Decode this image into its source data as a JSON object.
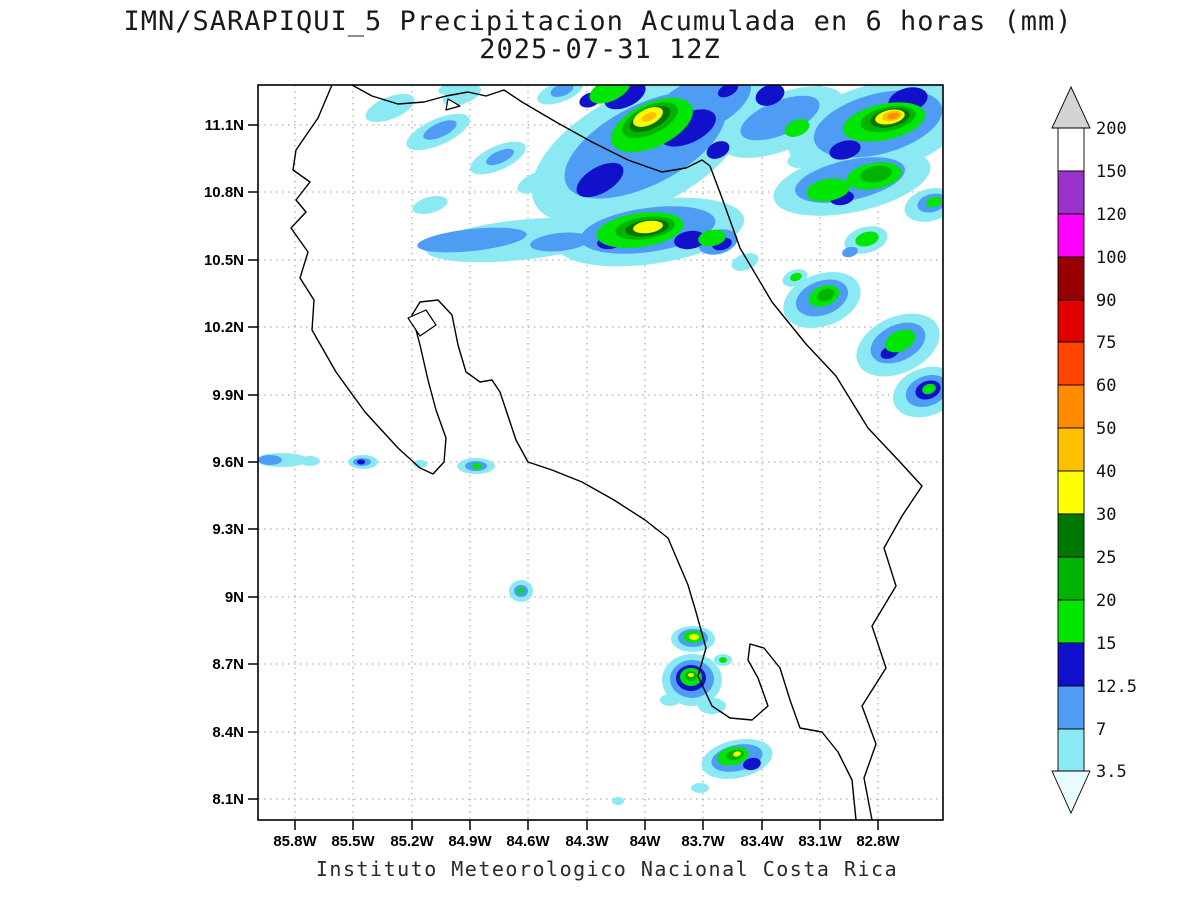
{
  "title": {
    "line1": "IMN/SARAPIQUI_5 Precipitacion Acumulada en 6 horas (mm)",
    "line2": "2025-07-31 12Z"
  },
  "footer": "Instituto Meteorologico Nacional Costa Rica",
  "axes": {
    "lat": [
      "11.1N",
      "10.8N",
      "10.5N",
      "10.2N",
      "9.9N",
      "9.6N",
      "9.3N",
      "9N",
      "8.7N",
      "8.4N",
      "8.1N"
    ],
    "lon": [
      "85.8W",
      "85.5W",
      "85.2W",
      "84.9W",
      "84.6W",
      "84.3W",
      "84W",
      "83.7W",
      "83.4W",
      "83.1W",
      "82.8W"
    ]
  },
  "colorbar": {
    "labels": [
      "200",
      "150",
      "120",
      "100",
      "90",
      "75",
      "60",
      "50",
      "40",
      "30",
      "25",
      "20",
      "15",
      "12.5",
      "7",
      "3.5"
    ],
    "colors": [
      "#d4d4d4",
      "#ffffff",
      "#9933cc",
      "#ff00ff",
      "#990000",
      "#e00000",
      "#ff4500",
      "#ff8c00",
      "#ffc000",
      "#ffff00",
      "#007700",
      "#00b300",
      "#00e600",
      "#1111cc",
      "#4f9cf5",
      "#8be9f4",
      "#e8fcff"
    ]
  },
  "chart_data": {
    "type": "heatmap",
    "title": "IMN/SARAPIQUI_5 Precipitacion Acumulada en 6 horas (mm)",
    "model": "IMN/SARAPIQUI_5",
    "valid_time": "2025-07-31 12Z",
    "variable": "Precipitacion Acumulada en 6 horas",
    "units": "mm",
    "lon_ticks": [
      "85.8W",
      "85.5W",
      "85.2W",
      "84.9W",
      "84.6W",
      "84.3W",
      "84W",
      "83.7W",
      "83.4W",
      "83.1W",
      "82.8W"
    ],
    "lat_ticks": [
      "11.1N",
      "10.8N",
      "10.5N",
      "10.2N",
      "9.9N",
      "9.6N",
      "9.3N",
      "9N",
      "8.7N",
      "8.4N",
      "8.1N"
    ],
    "levels_mm": [
      3.5,
      7,
      12.5,
      15,
      20,
      25,
      30,
      40,
      50,
      60,
      75,
      90,
      100,
      120,
      150,
      200
    ],
    "band_colors_ascending": [
      "#8be9f4",
      "#4f9cf5",
      "#1111cc",
      "#00e600",
      "#00b300",
      "#007700",
      "#ffff00",
      "#ffc000",
      "#ff8c00",
      "#ff4500",
      "#e00000",
      "#990000",
      "#ff00ff",
      "#9933cc",
      "#ffffff",
      "#d4d4d4"
    ],
    "legend_position": "right",
    "grid": "dotted",
    "attribution": "Instituto Meteorologico Nacional Costa Rica"
  }
}
